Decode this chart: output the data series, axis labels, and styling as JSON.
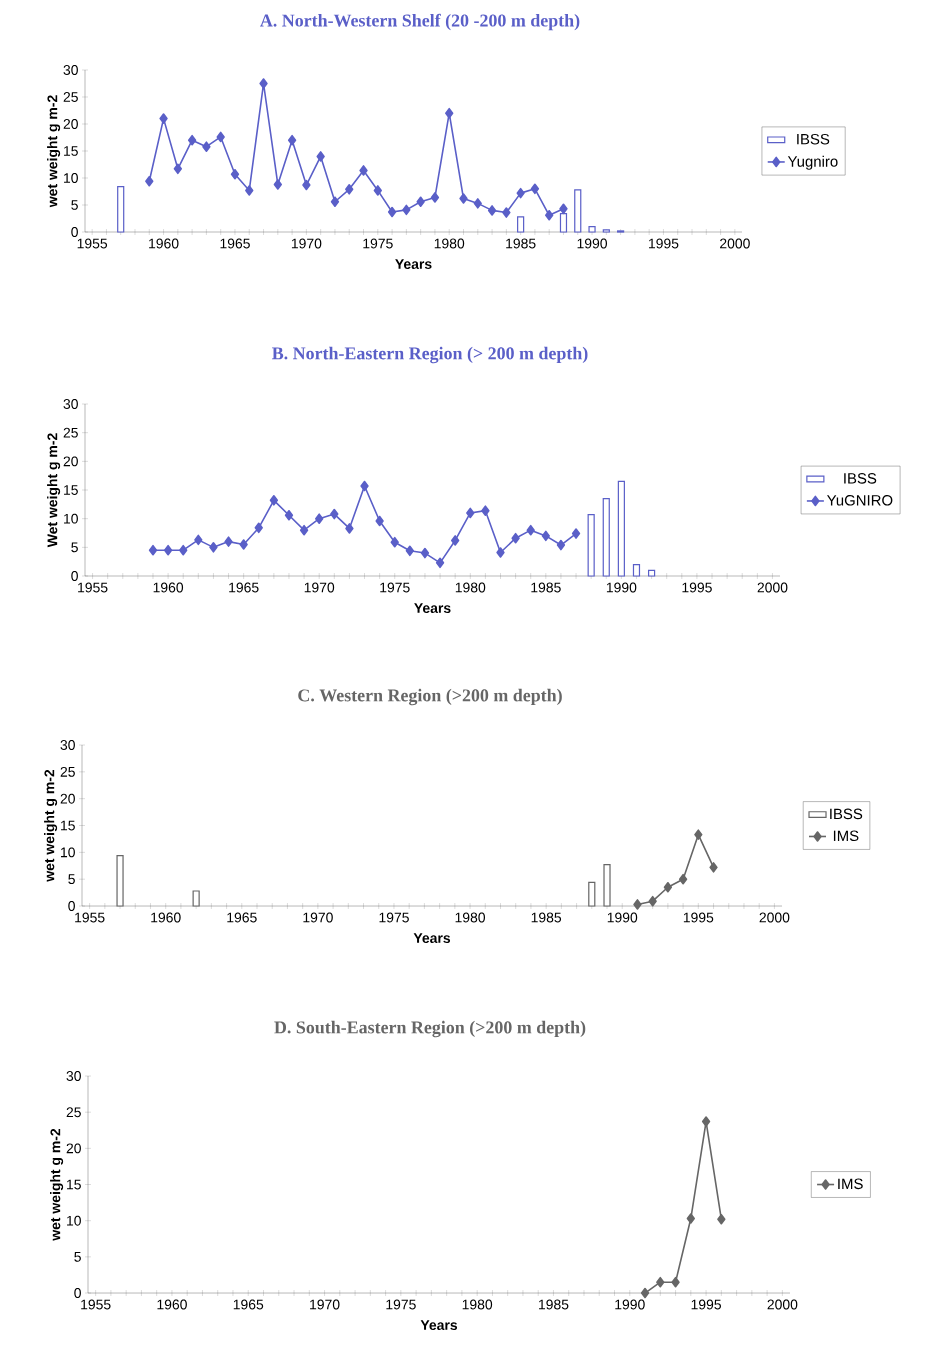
{
  "chart_data": [
    {
      "type": "line",
      "title": "A.  North-Western Shelf  (20 -200 m depth)",
      "xlabel": "Years",
      "ylabel": "wet weight g m-2",
      "legend": "right",
      "xlim": [
        1954.5,
        2000.5
      ],
      "ylim": [
        0,
        30
      ],
      "yticks": [
        0,
        5,
        10,
        15,
        20,
        25,
        30
      ],
      "xticks": [
        1955,
        {
          "value": 1956,
          "label": null
        },
        {
          "value": 1957,
          "label": null
        },
        {
          "value": 1958,
          "label": null
        },
        {
          "value": 1959,
          "label": null
        },
        1960,
        {
          "value": 1961,
          "label": null
        },
        {
          "value": 1962,
          "label": null
        },
        {
          "value": 1963,
          "label": null
        },
        {
          "value": 1964,
          "label": null
        },
        1965,
        {
          "value": 1966,
          "label": null
        },
        {
          "value": 1967,
          "label": null
        },
        {
          "value": 1968,
          "label": null
        },
        {
          "value": 1969,
          "label": null
        },
        1970,
        {
          "value": 1971,
          "label": null
        },
        {
          "value": 1972,
          "label": null
        },
        {
          "value": 1973,
          "label": null
        },
        {
          "value": 1974,
          "label": null
        },
        1975,
        {
          "value": 1976,
          "label": null
        },
        {
          "value": 1977,
          "label": null
        },
        {
          "value": 1978,
          "label": null
        },
        {
          "value": 1979,
          "label": null
        },
        1980,
        {
          "value": 1981,
          "label": null
        },
        {
          "value": 1982,
          "label": null
        },
        {
          "value": 1983,
          "label": null
        },
        {
          "value": 1984,
          "label": null
        },
        1985,
        {
          "value": 1986,
          "label": null
        },
        {
          "value": 1987,
          "label": null
        },
        {
          "value": 1988,
          "label": null
        },
        {
          "value": 1989,
          "label": null
        },
        1990,
        {
          "value": 1991,
          "label": null
        },
        {
          "value": 1992,
          "label": null
        },
        {
          "value": 1993,
          "label": null
        },
        {
          "value": 1994,
          "label": null
        },
        1995,
        {
          "value": 1996,
          "label": null
        },
        {
          "value": 1997,
          "label": null
        },
        {
          "value": 1998,
          "label": null
        },
        {
          "value": 1999,
          "label": null
        },
        2000
      ],
      "series": [
        {
          "name": "IBSS",
          "type": "bar",
          "color": "#5a5fc8",
          "x": [
            1957,
            1985,
            1988,
            1989,
            1990,
            1991,
            1992
          ],
          "values": [
            8.4,
            2.8,
            3.4,
            7.8,
            1.0,
            0.4,
            0.2
          ]
        },
        {
          "name": "Yugniro",
          "color": "#5a5fc8",
          "marker": "diamond",
          "line_style": "solid",
          "x": [
            1959,
            1960,
            1961,
            1962,
            1963,
            1964,
            1965,
            1966,
            1967,
            1968,
            1969,
            1970,
            1971,
            1972,
            1973,
            1974,
            1975,
            1976,
            1977,
            1978,
            1979,
            1980,
            1981,
            1982,
            1983,
            1984,
            1985,
            1986,
            1987,
            1988
          ],
          "values": [
            9.4,
            21.0,
            11.7,
            17.0,
            15.8,
            17.6,
            10.7,
            7.7,
            27.5,
            8.8,
            17.0,
            8.7,
            14.0,
            5.6,
            7.9,
            11.4,
            7.7,
            3.7,
            4.1,
            5.6,
            6.4,
            22.0,
            6.2,
            5.3,
            4.0,
            3.6,
            7.2,
            8.0,
            3.1,
            4.3
          ]
        }
      ]
    },
    {
      "type": "line",
      "title": "B. North-Eastern Region (> 200 m depth)",
      "xlabel": "Years",
      "ylabel": "Wet weight g m-2",
      "legend": "right",
      "xlim": [
        1954.5,
        2000.5
      ],
      "ylim": [
        0,
        30
      ],
      "yticks": [
        0,
        5,
        10,
        15,
        20,
        25,
        30
      ],
      "xticks": [
        1955,
        {
          "value": 1956,
          "label": null
        },
        {
          "value": 1957,
          "label": null
        },
        {
          "value": 1958,
          "label": null
        },
        {
          "value": 1959,
          "label": null
        },
        1960,
        {
          "value": 1961,
          "label": null
        },
        {
          "value": 1962,
          "label": null
        },
        {
          "value": 1963,
          "label": null
        },
        {
          "value": 1964,
          "label": null
        },
        1965,
        {
          "value": 1966,
          "label": null
        },
        {
          "value": 1967,
          "label": null
        },
        {
          "value": 1968,
          "label": null
        },
        {
          "value": 1969,
          "label": null
        },
        1970,
        {
          "value": 1971,
          "label": null
        },
        {
          "value": 1972,
          "label": null
        },
        {
          "value": 1973,
          "label": null
        },
        {
          "value": 1974,
          "label": null
        },
        1975,
        {
          "value": 1976,
          "label": null
        },
        {
          "value": 1977,
          "label": null
        },
        {
          "value": 1978,
          "label": null
        },
        {
          "value": 1979,
          "label": null
        },
        1980,
        {
          "value": 1981,
          "label": null
        },
        {
          "value": 1982,
          "label": null
        },
        {
          "value": 1983,
          "label": null
        },
        {
          "value": 1984,
          "label": null
        },
        1985,
        {
          "value": 1986,
          "label": null
        },
        {
          "value": 1987,
          "label": null
        },
        {
          "value": 1988,
          "label": null
        },
        {
          "value": 1989,
          "label": null
        },
        1990,
        {
          "value": 1991,
          "label": null
        },
        {
          "value": 1992,
          "label": null
        },
        {
          "value": 1993,
          "label": null
        },
        {
          "value": 1994,
          "label": null
        },
        1995,
        {
          "value": 1996,
          "label": null
        },
        {
          "value": 1997,
          "label": null
        },
        {
          "value": 1998,
          "label": null
        },
        {
          "value": 1999,
          "label": null
        },
        2000
      ],
      "series": [
        {
          "name": "IBSS",
          "type": "bar",
          "color": "#5a5fc8",
          "x": [
            1988,
            1989,
            1990,
            1991,
            1992
          ],
          "values": [
            10.7,
            13.5,
            16.5,
            2.0,
            1.0
          ]
        },
        {
          "name": "YuGNIRO",
          "color": "#5a5fc8",
          "marker": "diamond",
          "line_style": "solid",
          "x": [
            1959,
            1960,
            1961,
            1962,
            1963,
            1964,
            1965,
            1966,
            1967,
            1968,
            1969,
            1970,
            1971,
            1972,
            1973,
            1974,
            1975,
            1976,
            1977,
            1978,
            1979,
            1980,
            1981,
            1982,
            1983,
            1984,
            1985,
            1986,
            1987
          ],
          "values": [
            4.5,
            4.5,
            4.5,
            6.3,
            5.0,
            6.0,
            5.5,
            8.4,
            13.2,
            10.6,
            8.0,
            10.0,
            10.8,
            8.3,
            15.7,
            9.6,
            5.9,
            4.4,
            4.0,
            2.3,
            6.2,
            11.0,
            11.4,
            4.1,
            6.6,
            8.0,
            7.0,
            5.4,
            7.4
          ]
        }
      ]
    },
    {
      "type": "line",
      "title": "C. Western Region (>200 m depth)",
      "xlabel": "Years",
      "ylabel": "wet weight g m-2",
      "legend": "right",
      "xlim": [
        1954.5,
        2000.5
      ],
      "ylim": [
        0,
        30
      ],
      "yticks": [
        0,
        5,
        10,
        15,
        20,
        25,
        30
      ],
      "xticks": [
        1955,
        {
          "value": 1956,
          "label": null
        },
        {
          "value": 1957,
          "label": null
        },
        {
          "value": 1958,
          "label": null
        },
        {
          "value": 1959,
          "label": null
        },
        1960,
        {
          "value": 1961,
          "label": null
        },
        {
          "value": 1962,
          "label": null
        },
        {
          "value": 1963,
          "label": null
        },
        {
          "value": 1964,
          "label": null
        },
        1965,
        {
          "value": 1966,
          "label": null
        },
        {
          "value": 1967,
          "label": null
        },
        {
          "value": 1968,
          "label": null
        },
        {
          "value": 1969,
          "label": null
        },
        1970,
        {
          "value": 1971,
          "label": null
        },
        {
          "value": 1972,
          "label": null
        },
        {
          "value": 1973,
          "label": null
        },
        {
          "value": 1974,
          "label": null
        },
        1975,
        {
          "value": 1976,
          "label": null
        },
        {
          "value": 1977,
          "label": null
        },
        {
          "value": 1978,
          "label": null
        },
        {
          "value": 1979,
          "label": null
        },
        1980,
        {
          "value": 1981,
          "label": null
        },
        {
          "value": 1982,
          "label": null
        },
        {
          "value": 1983,
          "label": null
        },
        {
          "value": 1984,
          "label": null
        },
        1985,
        {
          "value": 1986,
          "label": null
        },
        {
          "value": 1987,
          "label": null
        },
        {
          "value": 1988,
          "label": null
        },
        {
          "value": 1989,
          "label": null
        },
        1990,
        {
          "value": 1991,
          "label": null
        },
        {
          "value": 1992,
          "label": null
        },
        {
          "value": 1993,
          "label": null
        },
        {
          "value": 1994,
          "label": null
        },
        1995,
        {
          "value": 1996,
          "label": null
        },
        {
          "value": 1997,
          "label": null
        },
        {
          "value": 1998,
          "label": null
        },
        {
          "value": 1999,
          "label": null
        },
        2000
      ],
      "series": [
        {
          "name": "IBSS",
          "type": "bar",
          "color": "#666666",
          "x": [
            1957,
            1962,
            1988,
            1989
          ],
          "values": [
            9.4,
            2.8,
            4.4,
            7.7
          ]
        },
        {
          "name": "IMS",
          "color": "#666666",
          "marker": "diamond",
          "line_style": "solid",
          "x": [
            1991,
            1992,
            1993,
            1994,
            1995,
            1996
          ],
          "values": [
            0.3,
            0.9,
            3.5,
            5.0,
            13.3,
            7.2
          ]
        }
      ]
    },
    {
      "type": "line",
      "title": "D. South-Eastern Region (>200 m depth)",
      "xlabel": "Years",
      "ylabel": "wet weight g m-2",
      "legend": "right",
      "xlim": [
        1954.5,
        2000.5
      ],
      "ylim": [
        0,
        30
      ],
      "yticks": [
        0,
        5,
        10,
        15,
        20,
        25,
        30
      ],
      "xticks": [
        1955,
        {
          "value": 1956,
          "label": null
        },
        {
          "value": 1957,
          "label": null
        },
        {
          "value": 1958,
          "label": null
        },
        {
          "value": 1959,
          "label": null
        },
        1960,
        {
          "value": 1961,
          "label": null
        },
        {
          "value": 1962,
          "label": null
        },
        {
          "value": 1963,
          "label": null
        },
        {
          "value": 1964,
          "label": null
        },
        1965,
        {
          "value": 1966,
          "label": null
        },
        {
          "value": 1967,
          "label": null
        },
        {
          "value": 1968,
          "label": null
        },
        {
          "value": 1969,
          "label": null
        },
        1970,
        {
          "value": 1971,
          "label": null
        },
        {
          "value": 1972,
          "label": null
        },
        {
          "value": 1973,
          "label": null
        },
        {
          "value": 1974,
          "label": null
        },
        1975,
        {
          "value": 1976,
          "label": null
        },
        {
          "value": 1977,
          "label": null
        },
        {
          "value": 1978,
          "label": null
        },
        {
          "value": 1979,
          "label": null
        },
        1980,
        {
          "value": 1981,
          "label": null
        },
        {
          "value": 1982,
          "label": null
        },
        {
          "value": 1983,
          "label": null
        },
        {
          "value": 1984,
          "label": null
        },
        1985,
        {
          "value": 1986,
          "label": null
        },
        {
          "value": 1987,
          "label": null
        },
        {
          "value": 1988,
          "label": null
        },
        {
          "value": 1989,
          "label": null
        },
        1990,
        {
          "value": 1991,
          "label": null
        },
        {
          "value": 1992,
          "label": null
        },
        {
          "value": 1993,
          "label": null
        },
        {
          "value": 1994,
          "label": null
        },
        1995,
        {
          "value": 1996,
          "label": null
        },
        {
          "value": 1997,
          "label": null
        },
        {
          "value": 1998,
          "label": null
        },
        {
          "value": 1999,
          "label": null
        },
        2000
      ],
      "series": [
        {
          "name": "IMS",
          "color": "#666666",
          "marker": "diamond",
          "line_style": "solid",
          "x": [
            1991,
            1992,
            1993,
            1994,
            1995,
            1996
          ],
          "values": [
            0.0,
            1.5,
            1.5,
            10.3,
            23.7,
            10.2
          ]
        }
      ]
    }
  ]
}
